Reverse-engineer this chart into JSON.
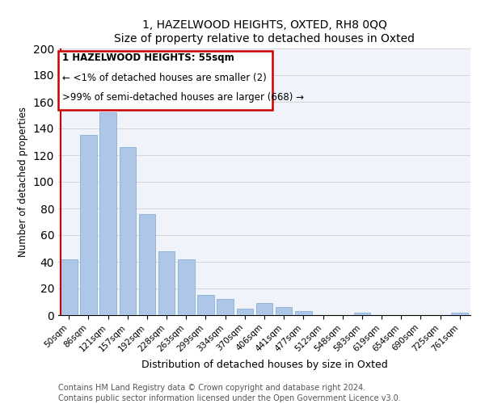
{
  "title": "1, HAZELWOOD HEIGHTS, OXTED, RH8 0QQ",
  "subtitle": "Size of property relative to detached houses in Oxted",
  "xlabel": "Distribution of detached houses by size in Oxted",
  "ylabel": "Number of detached properties",
  "bar_labels": [
    "50sqm",
    "86sqm",
    "121sqm",
    "157sqm",
    "192sqm",
    "228sqm",
    "263sqm",
    "299sqm",
    "334sqm",
    "370sqm",
    "406sqm",
    "441sqm",
    "477sqm",
    "512sqm",
    "548sqm",
    "583sqm",
    "619sqm",
    "654sqm",
    "690sqm",
    "725sqm",
    "761sqm"
  ],
  "bar_values": [
    42,
    135,
    152,
    126,
    76,
    48,
    42,
    15,
    12,
    5,
    9,
    6,
    3,
    0,
    0,
    2,
    0,
    0,
    0,
    0,
    2
  ],
  "bar_color": "#aec6e8",
  "bar_edge_color": "#7ba7d0",
  "highlight_color": "#cc0000",
  "ylim": [
    0,
    200
  ],
  "yticks": [
    0,
    20,
    40,
    60,
    80,
    100,
    120,
    140,
    160,
    180,
    200
  ],
  "annotation_title": "1 HAZELWOOD HEIGHTS: 55sqm",
  "annotation_line1": "← <1% of detached houses are smaller (2)",
  "annotation_line2": ">99% of semi-detached houses are larger (668) →",
  "footer_line1": "Contains HM Land Registry data © Crown copyright and database right 2024.",
  "footer_line2": "Contains public sector information licensed under the Open Government Licence v3.0."
}
